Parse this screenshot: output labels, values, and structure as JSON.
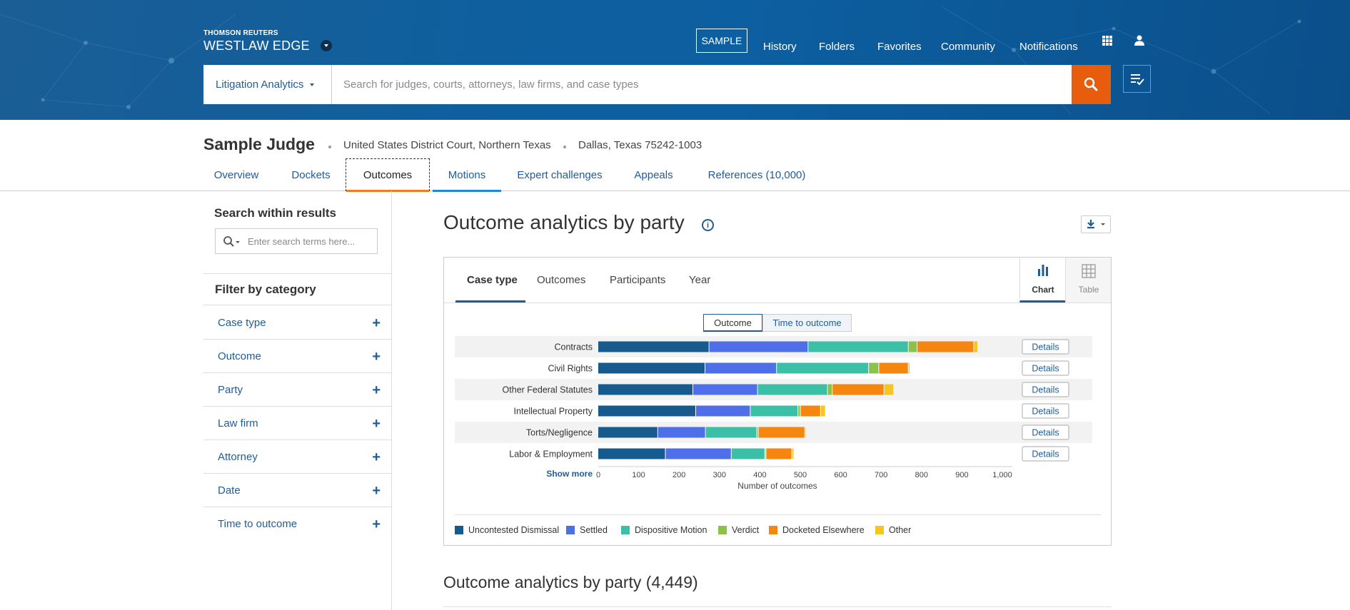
{
  "header": {
    "brand_small": "THOMSON REUTERS",
    "brand_large": "WESTLAW EDGE",
    "nav": {
      "sample": "SAMPLE",
      "history": "History",
      "folders": "Folders",
      "favorites": "Favorites",
      "community": "Community",
      "notifications": "Notifications"
    },
    "search": {
      "scope": "Litigation Analytics",
      "placeholder": "Search for judges, courts, attorneys, law firms, and case types"
    }
  },
  "judge": {
    "name": "Sample Judge",
    "court": "United States District Court, Northern Texas",
    "location": "Dallas, Texas 75242-1003"
  },
  "tabs": [
    {
      "label": "Overview"
    },
    {
      "label": "Dockets"
    },
    {
      "label": "Outcomes"
    },
    {
      "label": "Motions"
    },
    {
      "label": "Expert challenges"
    },
    {
      "label": "Appeals"
    },
    {
      "label": "References (10,000)"
    }
  ],
  "sidebar": {
    "search_title": "Search within results",
    "search_placeholder": "Enter search terms here...",
    "filter_title": "Filter by category",
    "filters": [
      "Case type",
      "Outcome",
      "Party",
      "Law firm",
      "Attorney",
      "Date",
      "Time to outcome"
    ]
  },
  "main": {
    "title": "Outcome analytics by party",
    "panel_tabs": [
      "Case type",
      "Outcomes",
      "Participants",
      "Year"
    ],
    "view_chart": "Chart",
    "view_table": "Table",
    "toggle_outcome": "Outcome",
    "toggle_time": "Time to outcome",
    "details_label": "Details",
    "show_more": "Show more",
    "subtitle": "Outcome analytics by party (4,449)"
  },
  "colors": {
    "header_bg": "#0f5f9e",
    "accent": "#1f5c99",
    "search_button": "#e85c0d",
    "tab_underline": "#f47c20"
  },
  "chart_data": {
    "type": "bar",
    "orientation": "horizontal",
    "stacked": true,
    "categories": [
      "Contracts",
      "Civil Rights",
      "Other Federal Statutes",
      "Intellectual Property",
      "Torts/Negligence",
      "Labor & Employment"
    ],
    "series": [
      {
        "name": "Uncontested Dismissal",
        "color": "#165a8e",
        "values": [
          275,
          265,
          235,
          242,
          148,
          167
        ]
      },
      {
        "name": "Settled",
        "color": "#4e6fe8",
        "values": [
          245,
          177,
          160,
          135,
          118,
          163
        ]
      },
      {
        "name": "Dispositive Motion",
        "color": "#3cbfa7",
        "values": [
          248,
          228,
          173,
          118,
          127,
          83
        ]
      },
      {
        "name": "Verdict",
        "color": "#8bc34a",
        "values": [
          22,
          25,
          12,
          6,
          4,
          3
        ]
      },
      {
        "name": "Docketed Elsewhere",
        "color": "#f5860f",
        "values": [
          140,
          73,
          128,
          50,
          115,
          64
        ]
      },
      {
        "name": "Other",
        "color": "#f3c623",
        "values": [
          10,
          4,
          24,
          12,
          2,
          5
        ]
      }
    ],
    "xlabel": "Number of outcomes",
    "ylabel": "",
    "xlim": [
      0,
      1000
    ],
    "xticks": [
      "0",
      "100",
      "200",
      "300",
      "400",
      "500",
      "600",
      "700",
      "800",
      "900",
      "1,000"
    ],
    "grid": false,
    "legend": "bottom"
  }
}
